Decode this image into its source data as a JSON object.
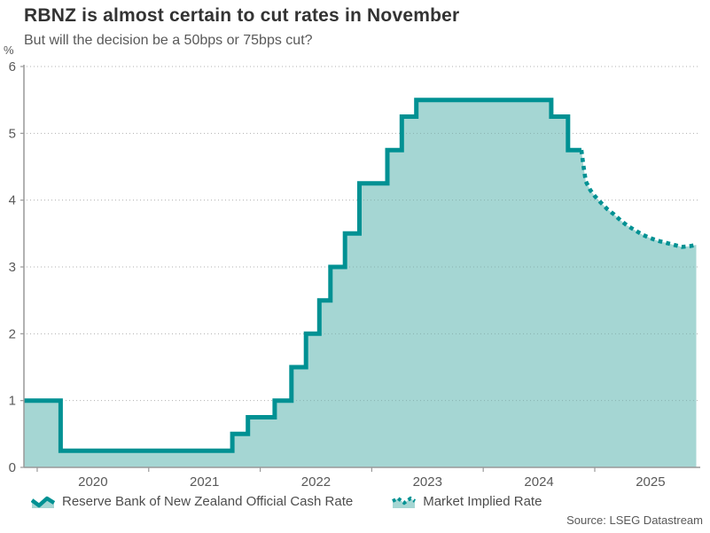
{
  "chart_data": {
    "type": "line",
    "title": "RBNZ is almost certain to cut rates in November",
    "subtitle": "But will the decision be a 50bps or 75bps cut?",
    "y_unit": "%",
    "source": "Source: LSEG Datastream",
    "ylim": [
      0,
      6
    ],
    "yticks": [
      0,
      1,
      2,
      3,
      4,
      5,
      6
    ],
    "xlim": [
      2019.881,
      2025.946
    ],
    "xticks_years": [
      2020,
      2021,
      2022,
      2023,
      2024,
      2025
    ],
    "grid": "horizontal-dotted",
    "legend_position": "bottom",
    "colors": {
      "line": "#009193",
      "fill": "#a5d6d3"
    },
    "series": [
      {
        "name": "Reserve Bank of New Zealand Official Cash Rate",
        "style": "step-area-solid",
        "step_points": [
          [
            2019.881,
            1.0
          ],
          [
            2020.21,
            0.25
          ],
          [
            2021.75,
            0.5
          ],
          [
            2021.89,
            0.75
          ],
          [
            2022.13,
            1.0
          ],
          [
            2022.28,
            1.5
          ],
          [
            2022.41,
            2.0
          ],
          [
            2022.53,
            2.5
          ],
          [
            2022.63,
            3.0
          ],
          [
            2022.76,
            3.5
          ],
          [
            2022.89,
            4.25
          ],
          [
            2023.14,
            4.75
          ],
          [
            2023.27,
            5.25
          ],
          [
            2023.4,
            5.5
          ],
          [
            2024.61,
            5.25
          ],
          [
            2024.76,
            4.75
          ],
          [
            2024.88,
            4.75
          ]
        ]
      },
      {
        "name": "Market Implied Rate",
        "style": "dotted-line",
        "points": [
          [
            2024.88,
            4.75
          ],
          [
            2024.9,
            4.5
          ],
          [
            2024.92,
            4.28
          ],
          [
            2024.96,
            4.15
          ],
          [
            2025.0,
            4.06
          ],
          [
            2025.05,
            3.97
          ],
          [
            2025.11,
            3.87
          ],
          [
            2025.17,
            3.79
          ],
          [
            2025.23,
            3.7
          ],
          [
            2025.29,
            3.62
          ],
          [
            2025.36,
            3.55
          ],
          [
            2025.43,
            3.48
          ],
          [
            2025.5,
            3.43
          ],
          [
            2025.57,
            3.39
          ],
          [
            2025.64,
            3.36
          ],
          [
            2025.71,
            3.33
          ],
          [
            2025.78,
            3.3
          ],
          [
            2025.85,
            3.31
          ],
          [
            2025.91,
            3.33
          ]
        ]
      }
    ]
  }
}
